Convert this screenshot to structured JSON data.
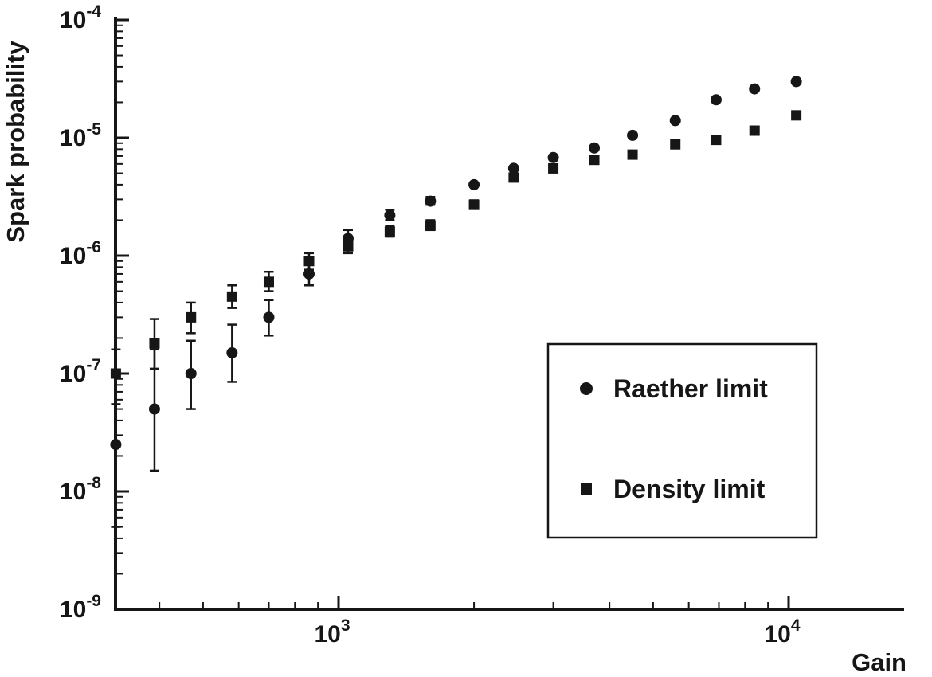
{
  "figure": {
    "background": "#ffffff",
    "ink_color": "#161616"
  },
  "chart_data": {
    "type": "scatter",
    "title": "",
    "xlabel": "Gain",
    "ylabel": "Spark probability",
    "x_scale": "log",
    "y_scale": "log",
    "xlim": [
      320,
      18000
    ],
    "ylim": [
      1e-09,
      0.0001
    ],
    "x_major_ticks": [
      1000,
      10000
    ],
    "y_major_ticks": [
      1e-09,
      1e-08,
      1e-07,
      1e-06,
      1e-05,
      0.0001
    ],
    "grid": false,
    "legend_position": "right-center",
    "x": [
      320,
      390,
      470,
      580,
      700,
      860,
      1050,
      1300,
      1600,
      2000,
      2450,
      3000,
      3700,
      4500,
      5600,
      6900,
      8400,
      10400
    ],
    "series": [
      {
        "name": "Raether limit",
        "marker": "circle",
        "values": [
          2.5e-08,
          5e-08,
          1e-07,
          1.5e-07,
          3e-07,
          7e-07,
          1.4e-06,
          2.2e-06,
          2.9e-06,
          4e-06,
          5.5e-06,
          6.8e-06,
          8.2e-06,
          1.05e-05,
          1.4e-05,
          2.1e-05,
          2.6e-05,
          3e-05
        ],
        "yerr_lo": [
          5e-09,
          1.5e-08,
          5e-08,
          8.5e-08,
          2.1e-07,
          5.6e-07,
          1.2e-06,
          2e-06,
          2.7e-06,
          null,
          null,
          null,
          null,
          null,
          null,
          null,
          null,
          null
        ],
        "yerr_hi": [
          1e-07,
          1.6e-07,
          1.9e-07,
          2.6e-07,
          4.2e-07,
          8.6e-07,
          1.65e-06,
          2.45e-06,
          3.15e-06,
          null,
          null,
          null,
          null,
          null,
          null,
          null,
          null,
          null
        ]
      },
      {
        "name": "Density limit",
        "marker": "square",
        "values": [
          1e-07,
          1.8e-07,
          3e-07,
          4.5e-07,
          6e-07,
          9e-07,
          1.2e-06,
          1.6e-06,
          1.8e-06,
          2.7e-06,
          4.6e-06,
          5.5e-06,
          6.5e-06,
          7.2e-06,
          8.8e-06,
          9.6e-06,
          1.15e-05,
          1.55e-05
        ],
        "yerr_lo": [
          5.5e-08,
          1.1e-07,
          2.2e-07,
          3.6e-07,
          5e-07,
          7.6e-07,
          1.05e-06,
          1.45e-06,
          1.65e-06,
          2.5e-06,
          null,
          null,
          null,
          null,
          null,
          null,
          null,
          null
        ],
        "yerr_hi": [
          1.6e-07,
          2.9e-07,
          4e-07,
          5.6e-07,
          7.3e-07,
          1.05e-06,
          1.4e-06,
          1.78e-06,
          2e-06,
          2.95e-06,
          null,
          null,
          null,
          null,
          null,
          null,
          null,
          null
        ]
      }
    ],
    "legend": {
      "entries": [
        {
          "marker": "circle",
          "label": "Raether limit"
        },
        {
          "marker": "square",
          "label": "Density limit"
        }
      ]
    }
  }
}
